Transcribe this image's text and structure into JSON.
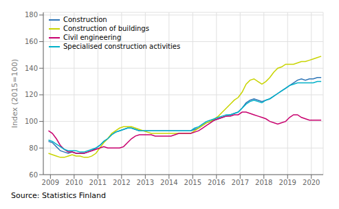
{
  "chart_data": {
    "type": "line",
    "ylabel": "Index (2015=100)",
    "source": "Source: Statistics Finland",
    "xlim": [
      2008.7,
      2020.5
    ],
    "ylim": [
      60,
      182
    ],
    "yticks": [
      60,
      80,
      100,
      120,
      140,
      160,
      180
    ],
    "xticks": [
      2009,
      2010,
      2011,
      2012,
      2013,
      2014,
      2015,
      2016,
      2017,
      2018,
      2019,
      2020
    ],
    "grid": true,
    "legend": "upper left",
    "x": [
      2008.917,
      2009.083,
      2009.25,
      2009.417,
      2009.583,
      2009.75,
      2009.917,
      2010.083,
      2010.25,
      2010.417,
      2010.583,
      2010.75,
      2010.917,
      2011.083,
      2011.25,
      2011.417,
      2011.583,
      2011.75,
      2011.917,
      2012.083,
      2012.25,
      2012.417,
      2012.583,
      2012.75,
      2012.917,
      2013.083,
      2013.25,
      2013.417,
      2013.583,
      2013.75,
      2013.917,
      2014.083,
      2014.25,
      2014.417,
      2014.583,
      2014.75,
      2014.917,
      2015.083,
      2015.25,
      2015.417,
      2015.583,
      2015.75,
      2015.917,
      2016.083,
      2016.25,
      2016.417,
      2016.583,
      2016.75,
      2016.917,
      2017.083,
      2017.25,
      2017.417,
      2017.583,
      2017.75,
      2017.917,
      2018.083,
      2018.25,
      2018.417,
      2018.583,
      2018.75,
      2018.917,
      2019.083,
      2019.25,
      2019.417,
      2019.583,
      2019.75,
      2019.917,
      2020.083,
      2020.25,
      2020.417
    ],
    "series": [
      {
        "name": "Construction",
        "color": "#2e75b6",
        "values": [
          85,
          84,
          81,
          78,
          77,
          76,
          77,
          76,
          76,
          76,
          77,
          78,
          80,
          82,
          85,
          87,
          90,
          92,
          93,
          94,
          95,
          95,
          94,
          93,
          93,
          93,
          93,
          93,
          93,
          93,
          93,
          93,
          93,
          93,
          93,
          93,
          93,
          94,
          95,
          97,
          99,
          100,
          101,
          102,
          103,
          104,
          105,
          106,
          107,
          110,
          114,
          116,
          117,
          116,
          115,
          116,
          117,
          119,
          121,
          123,
          125,
          127,
          129,
          131,
          132,
          131,
          132,
          132,
          133,
          133
        ]
      },
      {
        "name": "Construction of buildings",
        "color": "#c8d400",
        "values": [
          76,
          75,
          74,
          73,
          73,
          74,
          75,
          74,
          74,
          73,
          73,
          74,
          76,
          80,
          84,
          87,
          91,
          93,
          95,
          96,
          96,
          96,
          95,
          94,
          93,
          92,
          91,
          91,
          91,
          91,
          91,
          91,
          91,
          91,
          91,
          91,
          91,
          93,
          95,
          97,
          99,
          100,
          102,
          104,
          107,
          110,
          113,
          116,
          118,
          122,
          128,
          131,
          132,
          130,
          128,
          130,
          133,
          137,
          140,
          141,
          143,
          143,
          143,
          144,
          145,
          145,
          146,
          147,
          148,
          149
        ]
      },
      {
        "name": "Civil engineering",
        "color": "#c8006e",
        "values": [
          93,
          91,
          87,
          82,
          79,
          77,
          77,
          76,
          76,
          76,
          77,
          78,
          79,
          80,
          81,
          80,
          80,
          80,
          80,
          81,
          84,
          87,
          89,
          90,
          90,
          90,
          90,
          89,
          89,
          89,
          89,
          89,
          90,
          91,
          91,
          91,
          91,
          92,
          93,
          95,
          97,
          99,
          101,
          102,
          103,
          104,
          104,
          105,
          105,
          107,
          107,
          106,
          105,
          104,
          103,
          102,
          100,
          99,
          98,
          99,
          100,
          103,
          105,
          105,
          103,
          102,
          101,
          101,
          101,
          101
        ]
      },
      {
        "name": "Specialised construction activities",
        "color": "#00b0c8",
        "values": [
          86,
          85,
          83,
          81,
          79,
          78,
          78,
          78,
          77,
          77,
          78,
          79,
          80,
          82,
          85,
          87,
          90,
          92,
          93,
          94,
          95,
          95,
          94,
          93,
          93,
          93,
          93,
          93,
          93,
          93,
          93,
          93,
          93,
          93,
          93,
          93,
          93,
          95,
          96,
          98,
          100,
          101,
          102,
          103,
          104,
          105,
          105,
          106,
          107,
          110,
          113,
          115,
          116,
          115,
          114,
          116,
          117,
          119,
          121,
          123,
          125,
          127,
          128,
          129,
          129,
          129,
          129,
          129,
          130,
          130
        ]
      }
    ]
  }
}
